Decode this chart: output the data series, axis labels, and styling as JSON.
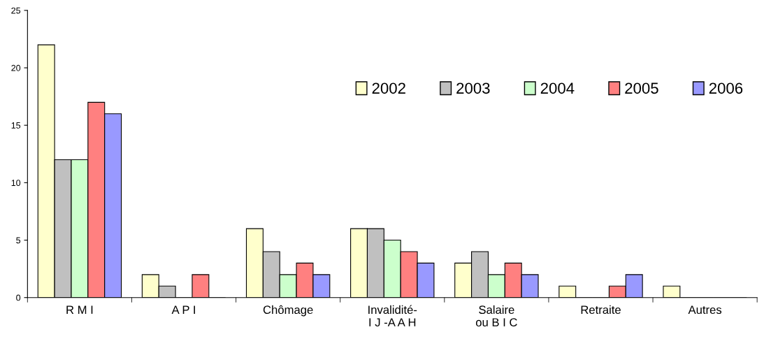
{
  "chart_data": {
    "type": "bar",
    "categories": [
      "R M I",
      "A P I",
      "Chômage",
      "Invalidité-\nI J -A A H",
      "Salaire\nou B I C",
      "Retraite",
      "Autres"
    ],
    "series": [
      {
        "name": "2002",
        "color": "#ffffcc",
        "values": [
          22,
          2,
          6,
          6,
          3,
          1,
          1
        ]
      },
      {
        "name": "2003",
        "color": "#c0c0c0",
        "values": [
          12,
          1,
          4,
          6,
          4,
          0,
          0
        ]
      },
      {
        "name": "2004",
        "color": "#ccffcc",
        "values": [
          12,
          0,
          2,
          5,
          2,
          0,
          0
        ]
      },
      {
        "name": "2005",
        "color": "#ff8080",
        "values": [
          17,
          2,
          3,
          4,
          3,
          1,
          0
        ]
      },
      {
        "name": "2006",
        "color": "#9999ff",
        "values": [
          16,
          0,
          2,
          3,
          2,
          2,
          0
        ]
      }
    ],
    "ylim": [
      0,
      25
    ],
    "yticks": [
      0,
      5,
      10,
      15,
      20,
      25
    ],
    "grid": false,
    "legend": "top right"
  }
}
